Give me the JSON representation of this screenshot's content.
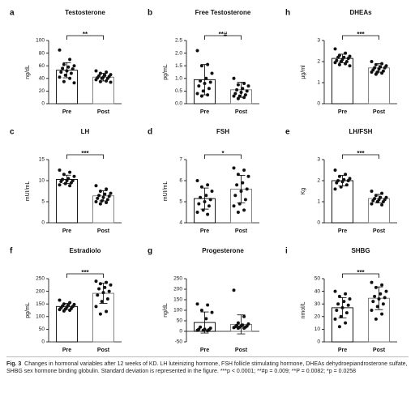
{
  "chart_data": [
    {
      "type": "bar",
      "panel": "a",
      "title": "Testosterone",
      "ylabel": "ng/dL",
      "categories": [
        "Pre",
        "Post"
      ],
      "values": [
        53,
        42
      ],
      "errors": [
        12,
        6
      ],
      "points": [
        [
          85,
          70,
          62,
          60,
          58,
          56,
          55,
          52,
          50,
          48,
          45,
          42,
          40,
          35,
          33
        ],
        [
          52,
          50,
          48,
          46,
          45,
          44,
          43,
          42,
          41,
          40,
          40,
          38,
          36,
          35,
          34
        ]
      ],
      "ylim": [
        0,
        100
      ],
      "yticks": [
        0,
        20,
        40,
        60,
        80,
        100
      ],
      "significance": "**"
    },
    {
      "type": "bar",
      "panel": "b",
      "title": "Free Testosterone",
      "ylabel": "pg/mL",
      "categories": [
        "Pre",
        "Post"
      ],
      "values": [
        0.95,
        0.55
      ],
      "errors": [
        0.6,
        0.3
      ],
      "points": [
        [
          2.1,
          1.55,
          1.5,
          1.2,
          1.0,
          0.9,
          0.85,
          0.8,
          0.7,
          0.6,
          0.5,
          0.4,
          0.35,
          0.3
        ],
        [
          1.0,
          0.8,
          0.75,
          0.7,
          0.6,
          0.55,
          0.5,
          0.45,
          0.4,
          0.35,
          0.3,
          0.3,
          0.25,
          0.2
        ]
      ],
      "ylim": [
        0,
        2.5
      ],
      "yticks": [
        {
          "value": 0,
          "label": "0.0"
        },
        0.5,
        {
          "value": 1,
          "label": "1.0"
        },
        1.5,
        {
          "value": 2,
          "label": "2.0"
        },
        2.5
      ],
      "significance": "**#"
    },
    {
      "type": "bar",
      "panel": "h",
      "title": "DHEAs",
      "ylabel": "µg/ml",
      "categories": [
        "Pre",
        "Post"
      ],
      "values": [
        2.15,
        1.7
      ],
      "errors": [
        0.2,
        0.2
      ],
      "points": [
        [
          2.6,
          2.4,
          2.3,
          2.25,
          2.2,
          2.2,
          2.15,
          2.1,
          2.05,
          2.0,
          2.0,
          1.95,
          1.9,
          1.85,
          1.8
        ],
        [
          2.0,
          1.9,
          1.85,
          1.8,
          1.75,
          1.7,
          1.7,
          1.65,
          1.6,
          1.55,
          1.5,
          1.5,
          1.45,
          1.4
        ]
      ],
      "ylim": [
        0,
        3
      ],
      "yticks": [
        0,
        1,
        2,
        3
      ],
      "significance": "***"
    },
    {
      "type": "bar",
      "panel": "c",
      "title": "LH",
      "ylabel": "mUI/mL",
      "categories": [
        "Pre",
        "Post"
      ],
      "values": [
        10.3,
        6.4
      ],
      "errors": [
        1,
        1.2
      ],
      "points": [
        [
          12.5,
          12,
          11.5,
          11,
          10.5,
          10.3,
          10,
          10,
          9.8,
          9.5,
          9.3,
          9,
          8.8
        ],
        [
          8.8,
          8,
          7.5,
          7,
          6.8,
          6.5,
          6.3,
          6,
          5.8,
          5.5,
          5.2,
          5,
          4.8,
          4.5
        ]
      ],
      "ylim": [
        0,
        15
      ],
      "yticks": [
        0,
        5,
        10,
        15
      ],
      "significance": "***"
    },
    {
      "type": "bar",
      "panel": "d",
      "title": "FSH",
      "ylabel": "mUI/mL",
      "categories": [
        "Pre",
        "Post"
      ],
      "values": [
        5.15,
        5.6
      ],
      "errors": [
        0.5,
        0.65
      ],
      "points": [
        [
          6.0,
          5.8,
          5.7,
          5.5,
          5.3,
          5.2,
          5.1,
          5.0,
          4.9,
          4.8,
          4.6,
          4.5,
          4.4
        ],
        [
          6.6,
          6.5,
          6.3,
          6.2,
          5.9,
          5.8,
          5.6,
          5.5,
          5.3,
          5.1,
          4.9,
          4.8,
          4.6,
          4.5
        ]
      ],
      "ylim": [
        4,
        7
      ],
      "yticks": [
        4,
        5,
        6,
        7
      ],
      "significance": "*"
    },
    {
      "type": "bar",
      "panel": "e",
      "title": "LH/FSH",
      "ylabel": "Kg",
      "categories": [
        "Pre",
        "Post"
      ],
      "values": [
        2.0,
        1.15
      ],
      "errors": [
        0.25,
        0.2
      ],
      "points": [
        [
          2.5,
          2.3,
          2.2,
          2.1,
          2.05,
          2.0,
          2.0,
          1.95,
          1.9,
          1.8,
          1.7,
          1.6
        ],
        [
          1.5,
          1.4,
          1.3,
          1.2,
          1.2,
          1.15,
          1.1,
          1.1,
          1.05,
          1.0,
          1.0,
          0.9,
          0.85
        ]
      ],
      "ylim": [
        0,
        3
      ],
      "yticks": [
        0,
        1,
        2,
        3
      ],
      "significance": "***"
    },
    {
      "type": "bar",
      "panel": "f",
      "title": "Estradiolo",
      "ylabel": "pg/mL",
      "categories": [
        "Pre",
        "Post"
      ],
      "values": [
        140,
        192
      ],
      "errors": [
        12,
        40
      ],
      "points": [
        [
          165,
          155,
          150,
          148,
          145,
          142,
          140,
          138,
          135,
          132,
          130,
          128,
          125,
          122
        ],
        [
          240,
          235,
          230,
          225,
          215,
          210,
          200,
          195,
          185,
          170,
          160,
          140,
          120,
          110
        ]
      ],
      "ylim": [
        0,
        250
      ],
      "yticks": [
        0,
        50,
        100,
        150,
        200,
        250
      ],
      "significance": "***"
    },
    {
      "type": "bar",
      "panel": "g",
      "title": "Progesterone",
      "ylabel": "ng/dL",
      "categories": [
        "Pre",
        "Post"
      ],
      "values": [
        42,
        33
      ],
      "errors": [
        50,
        45
      ],
      "points": [
        [
          130,
          125,
          100,
          90,
          60,
          20,
          15,
          10,
          10,
          8,
          5,
          5,
          3
        ],
        [
          195,
          70,
          40,
          35,
          30,
          28,
          25,
          25,
          22,
          20,
          20,
          18,
          15,
          15
        ]
      ],
      "ylim": [
        -50,
        250
      ],
      "yticks": [
        -50,
        0,
        50,
        100,
        150,
        200,
        250
      ]
    },
    {
      "type": "bar",
      "panel": "i",
      "title": "SHBG",
      "ylabel": "nmol/L",
      "categories": [
        "Pre",
        "Post"
      ],
      "values": [
        27,
        34.5
      ],
      "errors": [
        8,
        9
      ],
      "points": [
        [
          40,
          38,
          36,
          34,
          32,
          30,
          29,
          27,
          25,
          23,
          20,
          18,
          15,
          12
        ],
        [
          47,
          45,
          43,
          40,
          38,
          36,
          35,
          34,
          32,
          30,
          28,
          25,
          22,
          18
        ]
      ],
      "ylim": [
        0,
        50
      ],
      "yticks": [
        0,
        10,
        20,
        30,
        40,
        50
      ],
      "significance": "***"
    }
  ],
  "caption": {
    "label": "Fig. 3",
    "text": "Changes in hormonal variables after 12 weeks of KD. LH luteinizing hormone, FSH follicle stimulating hormone, DHEAs dehydroepiandrosterone sulfate, SHBG sex hormone binding globulin. Standard deviation is represented in the figure. ***p < 0.0001; **#p = 0.009; **P = 0.0082; *p = 0.0258"
  }
}
